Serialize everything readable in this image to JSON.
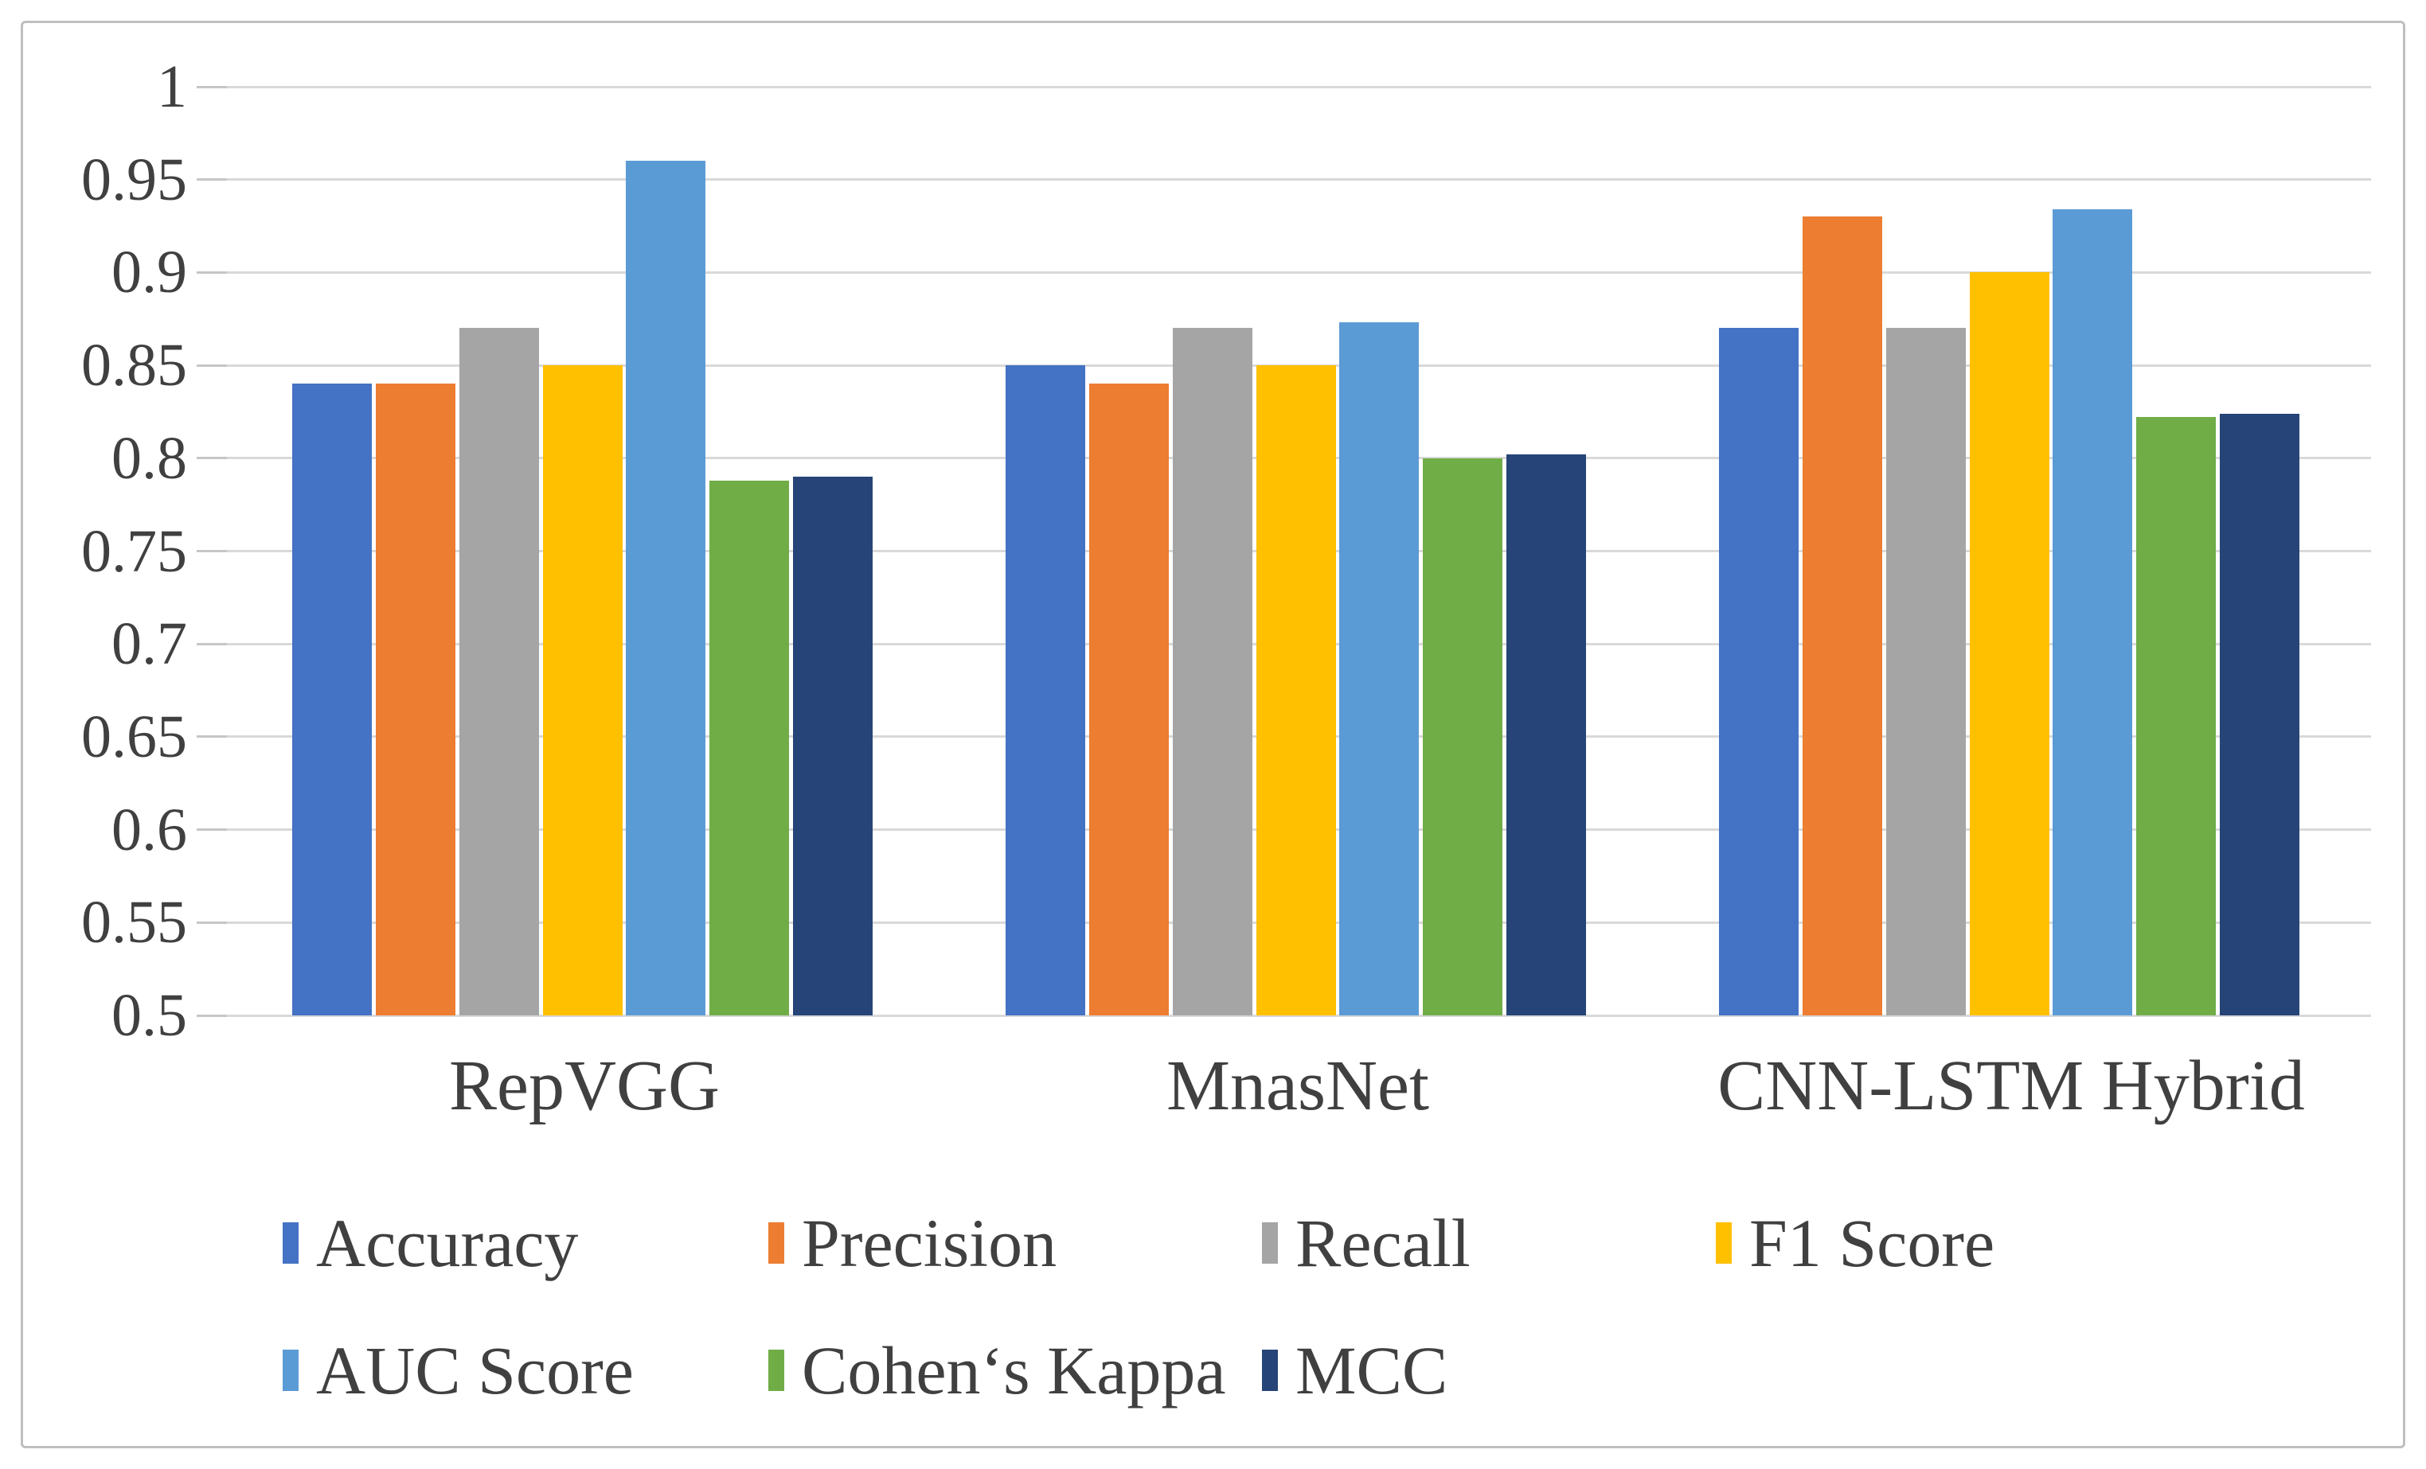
{
  "figure": {
    "background": "#ffffff",
    "border_color": "#BFBFBF",
    "text_color": "#404040",
    "gridline_color": "#D9D9D9"
  },
  "chart_data": {
    "type": "bar",
    "title": "",
    "xlabel": "",
    "ylabel": "",
    "categories": [
      "RepVGG",
      "MnasNet",
      "CNN-LSTM Hybrid"
    ],
    "series": [
      {
        "name": "Accuracy",
        "color": "#4472C4",
        "values": [
          0.84,
          0.85,
          0.87
        ]
      },
      {
        "name": "Precision",
        "color": "#ED7D31",
        "values": [
          0.84,
          0.84,
          0.93
        ]
      },
      {
        "name": "Recall",
        "color": "#A5A5A5",
        "values": [
          0.87,
          0.87,
          0.87
        ]
      },
      {
        "name": "F1 Score",
        "color": "#FFC000",
        "values": [
          0.85,
          0.85,
          0.9
        ]
      },
      {
        "name": "AUC Score",
        "color": "#5B9BD5",
        "values": [
          0.96,
          0.873,
          0.934
        ]
      },
      {
        "name": "Cohen‘s Kappa",
        "color": "#70AD47",
        "values": [
          0.788,
          0.8,
          0.822
        ]
      },
      {
        "name": "MCC",
        "color": "#264478",
        "values": [
          0.79,
          0.802,
          0.824
        ]
      }
    ],
    "ylim": [
      0.5,
      1.0
    ],
    "ytick_step": 0.05,
    "ytick_labels": [
      "1",
      "0.95",
      "0.9",
      "0.85",
      "0.8",
      "0.75",
      "0.7",
      "0.65",
      "0.6",
      "0.55",
      "0.5"
    ],
    "grid": true,
    "legend_position": "bottom",
    "legend_rows": [
      [
        "Accuracy",
        "Precision",
        "Recall",
        "F1 Score"
      ],
      [
        "AUC Score",
        "Cohen‘s Kappa",
        "MCC"
      ]
    ]
  }
}
